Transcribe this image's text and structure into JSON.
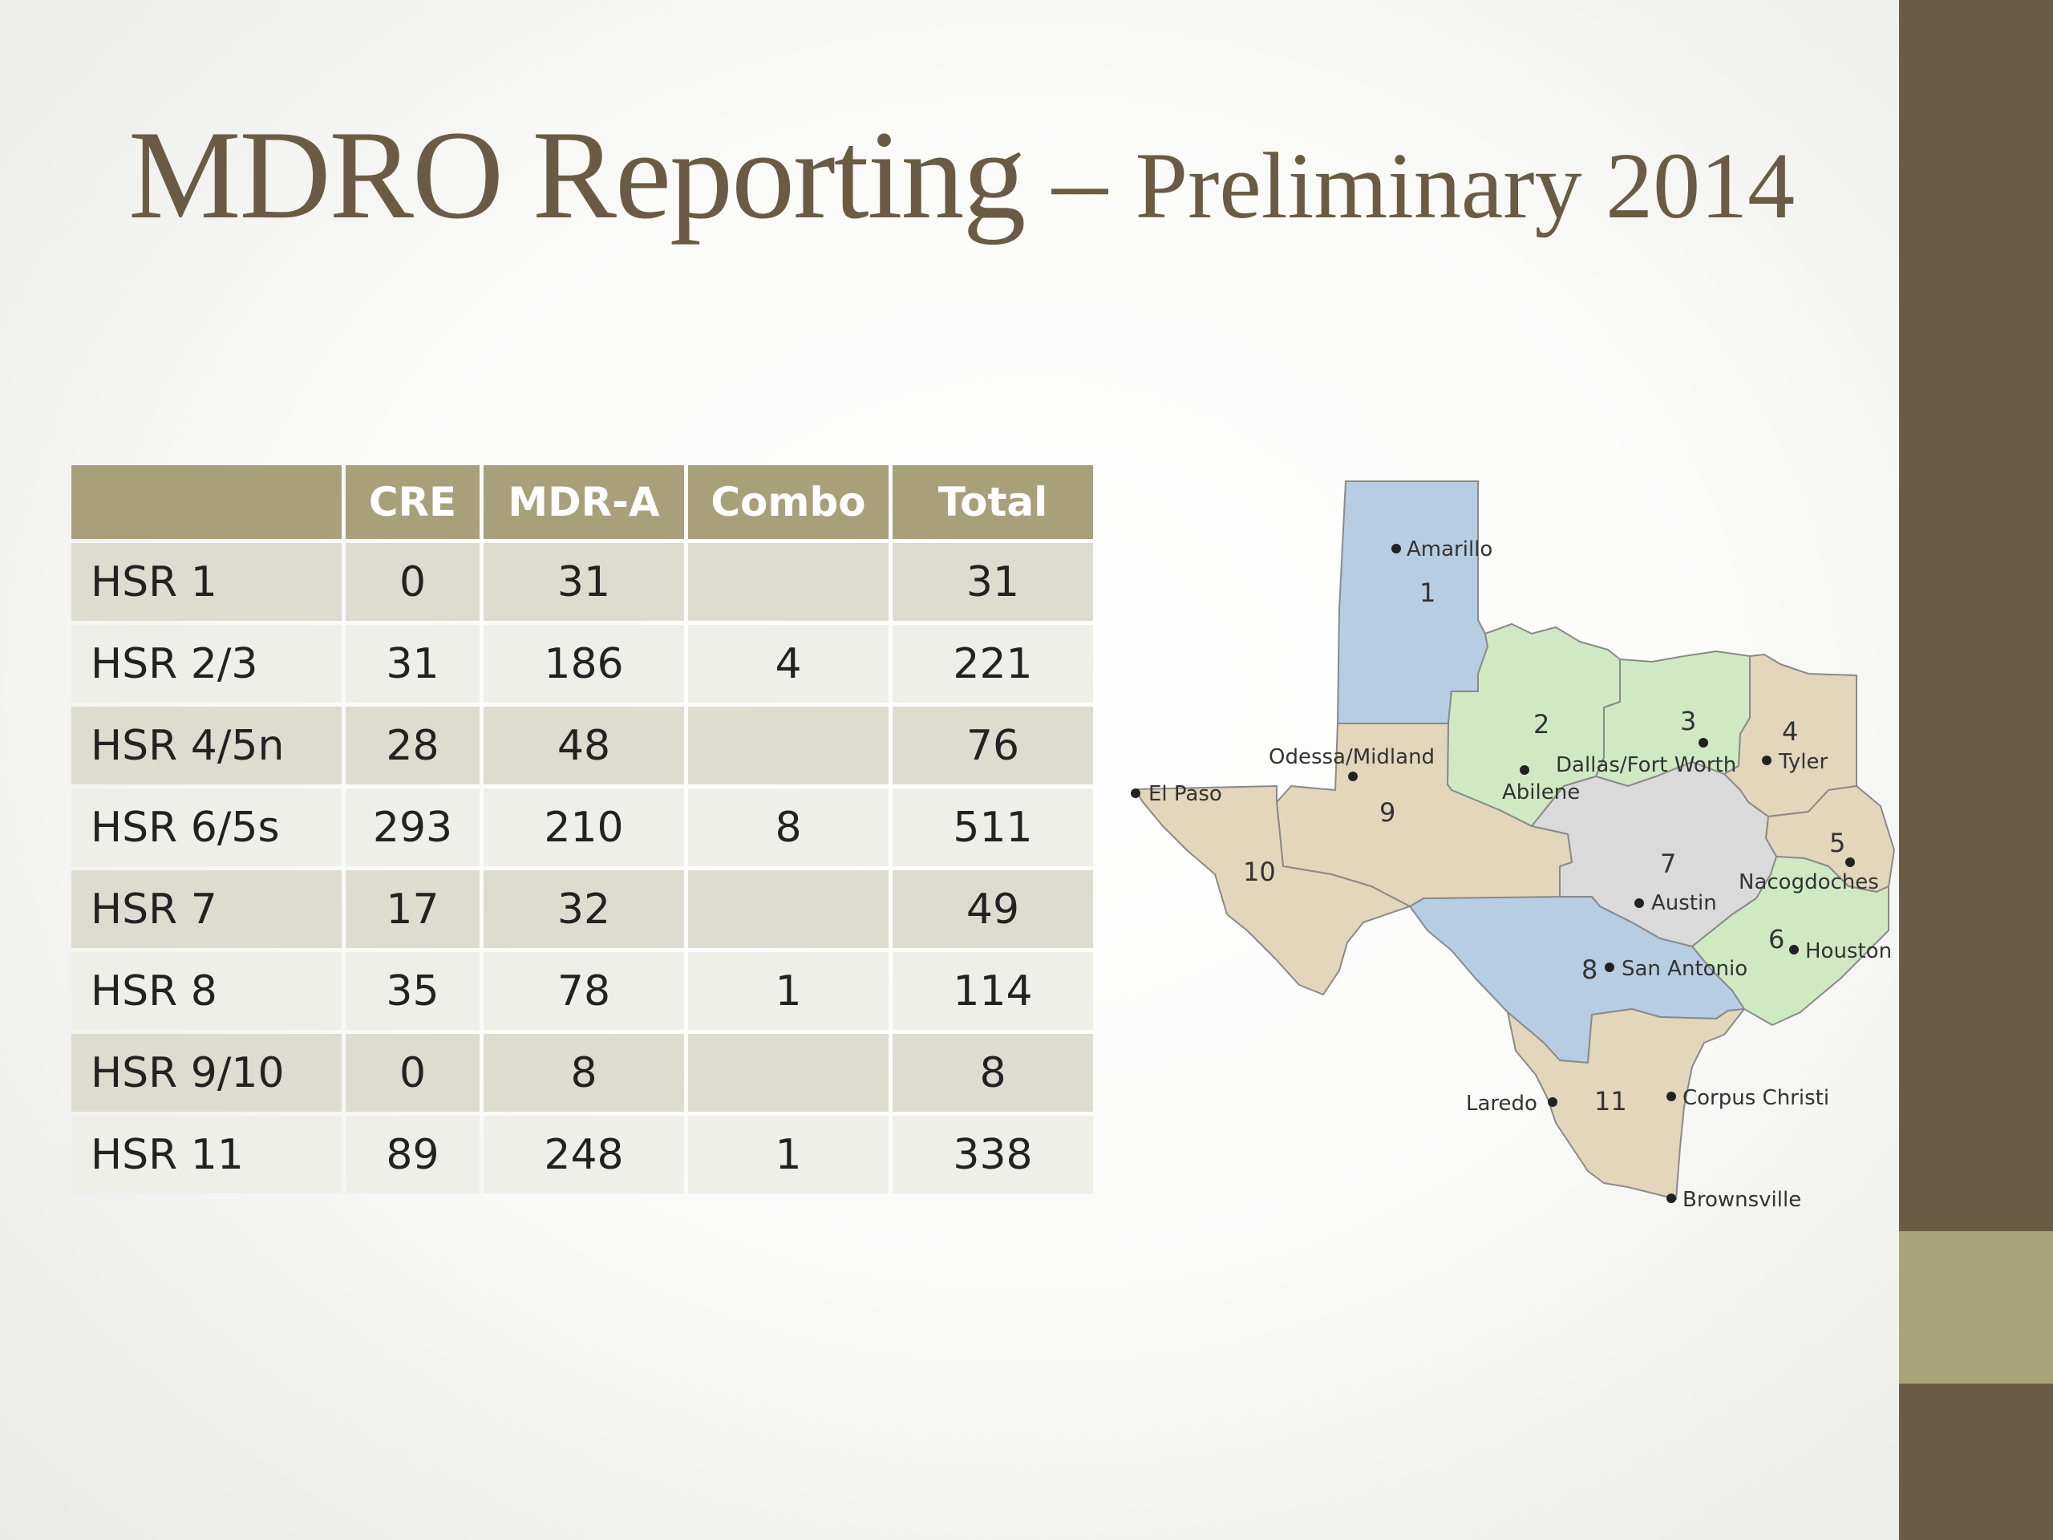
{
  "slide": {
    "title_main": "MDRO Reporting",
    "title_dash": " – ",
    "title_sub": "Preliminary 2014"
  },
  "table": {
    "headers": [
      "",
      "CRE",
      "MDR-A",
      "Combo",
      "Total"
    ],
    "rows": [
      [
        "HSR 1",
        "0",
        "31",
        "",
        "31"
      ],
      [
        "HSR 2/3",
        "31",
        "186",
        "4",
        "221"
      ],
      [
        "HSR 4/5n",
        "28",
        "48",
        "",
        "76"
      ],
      [
        "HSR 6/5s",
        "293",
        "210",
        "8",
        "511"
      ],
      [
        "HSR 7",
        "17",
        "32",
        "",
        "49"
      ],
      [
        "HSR 8",
        "35",
        "78",
        "1",
        "114"
      ],
      [
        "HSR 9/10",
        "0",
        "8",
        "",
        "8"
      ],
      [
        "HSR 11",
        "89",
        "248",
        "1",
        "338"
      ]
    ]
  },
  "map": {
    "region_numbers": [
      "1",
      "2",
      "3",
      "4",
      "5",
      "6",
      "7",
      "8",
      "9",
      "10",
      "11"
    ],
    "cities": [
      "Amarillo",
      "Odessa/Midland",
      "El Paso",
      "Abilene",
      "Dallas/Fort Worth",
      "Tyler",
      "Nacogdoches",
      "Austin",
      "Houston",
      "San Antonio",
      "Laredo",
      "Corpus Christi",
      "Brownsville"
    ],
    "colors": {
      "blue": "#b6cde3",
      "green": "#cfeac2",
      "tan": "#e2d6bb",
      "gray": "#dadada",
      "border": "#8a8a8a"
    }
  },
  "theme": {
    "sidebar": "#6a5c44",
    "accent": "#a9a37a",
    "header": "#a7a07a"
  }
}
